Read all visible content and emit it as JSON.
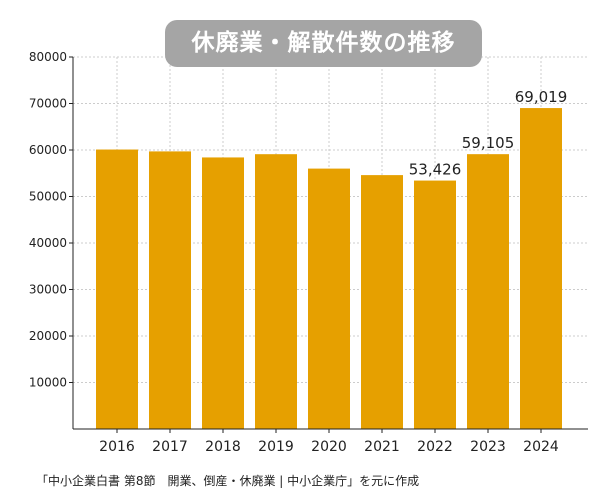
{
  "chart_data": {
    "type": "bar",
    "title": "休廃業・解散件数の推移",
    "categories": [
      "2016",
      "2017",
      "2018",
      "2019",
      "2020",
      "2021",
      "2022",
      "2023",
      "2024"
    ],
    "values": [
      60100,
      59700,
      58400,
      59100,
      56000,
      54600,
      53426,
      59105,
      69019
    ],
    "data_labels": [
      "",
      "",
      "",
      "",
      "",
      "",
      "53,426",
      "59,105",
      "69,019"
    ],
    "ylim": [
      0,
      80000
    ],
    "yticks": [
      "10000",
      "20000",
      "30000",
      "40000",
      "50000",
      "60000",
      "70000",
      "80000"
    ],
    "xlabel": "",
    "ylabel": "",
    "grid": true,
    "bar_color": "#e6a000"
  },
  "source": "「中小企業白書 第8節　開業、倒産・休廃業 | 中小企業庁」を元に作成"
}
